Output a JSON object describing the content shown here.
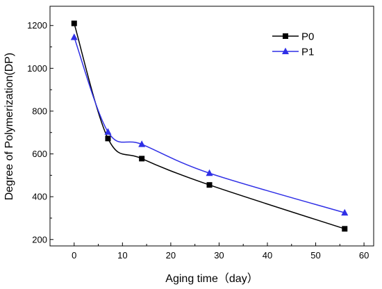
{
  "chart_data": {
    "type": "line",
    "title": "",
    "xlabel": "Aging time（day）",
    "ylabel": "Degree of Polymerization(DP)",
    "xlim": [
      -5,
      62
    ],
    "ylim": [
      170,
      1290
    ],
    "xticks": [
      0,
      10,
      20,
      30,
      40,
      50,
      60
    ],
    "yticks": [
      200,
      400,
      600,
      800,
      1000,
      1200
    ],
    "grid": false,
    "legend_position": "top-right",
    "series": [
      {
        "name": "P0",
        "color": "#000000",
        "marker": "square",
        "x": [
          0,
          7,
          14,
          28,
          56
        ],
        "y": [
          1210,
          672,
          578,
          455,
          250
        ]
      },
      {
        "name": "P1",
        "color": "#2f2fe6",
        "marker": "triangle",
        "x": [
          0,
          7,
          14,
          28,
          56
        ],
        "y": [
          1145,
          703,
          645,
          510,
          325
        ]
      }
    ]
  }
}
